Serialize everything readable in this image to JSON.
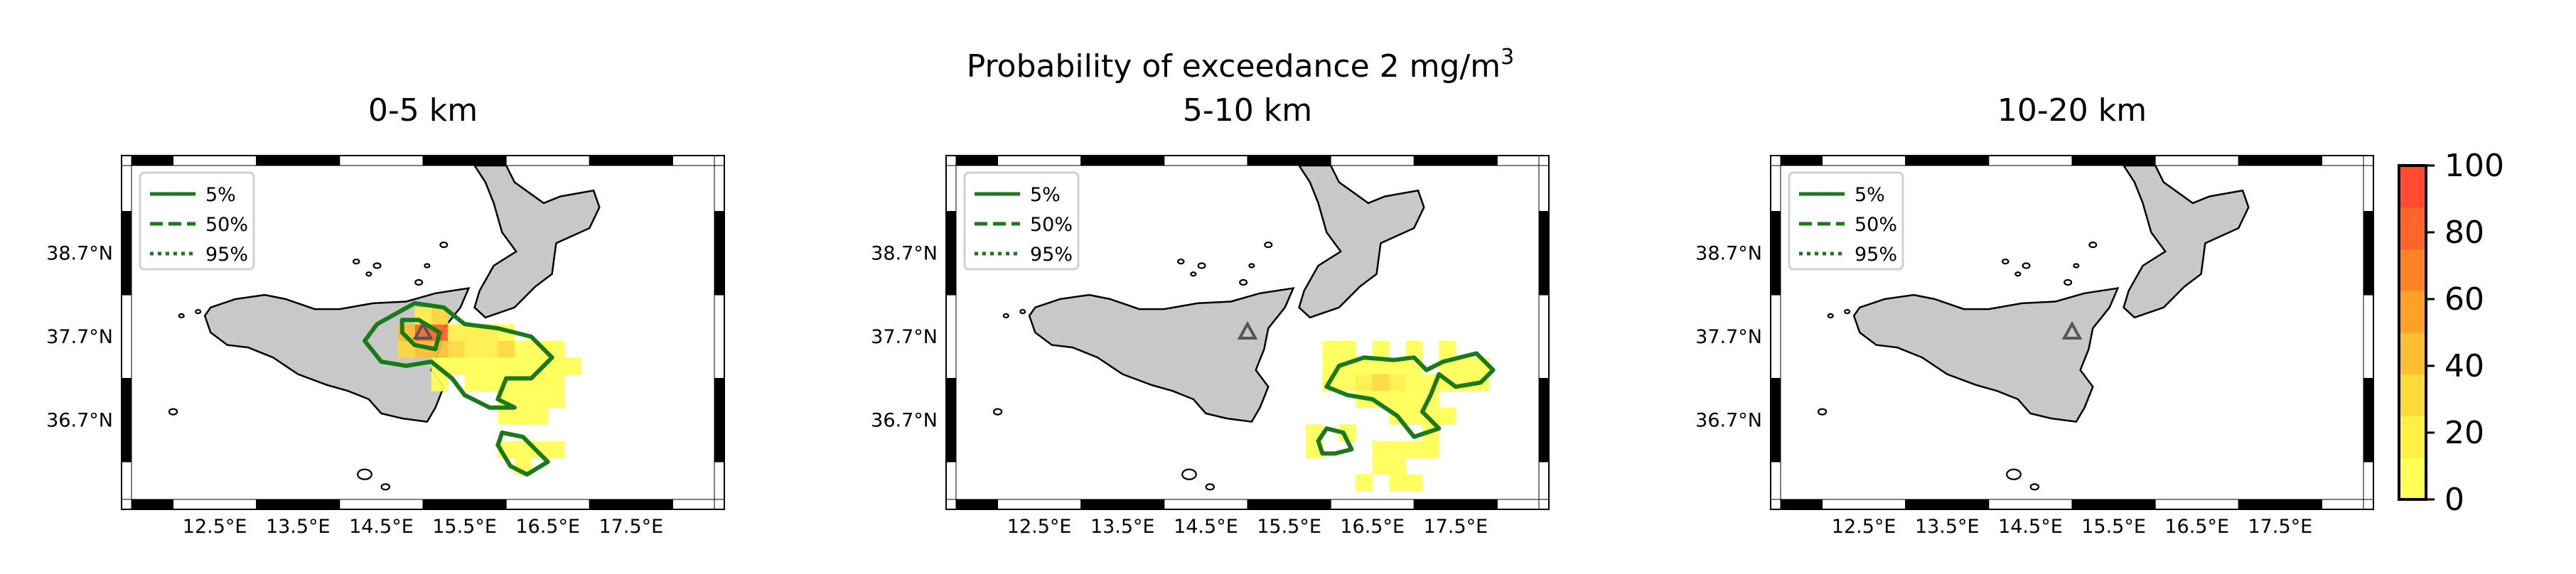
{
  "figure": {
    "suptitle": "Probability of exceedance 2 mg/m",
    "suptitle_sup": "3"
  },
  "colors": {
    "land": "#c8c8c8",
    "coast": "#000000",
    "contour": "#1a7a1a",
    "volcano": "#555555",
    "colormap": [
      "#ffff55",
      "#fff046",
      "#ffd83c",
      "#ffbe32",
      "#ffa028",
      "#ff8228",
      "#ff6428",
      "#ff4a32"
    ]
  },
  "colorbar": {
    "ticks": [
      "0",
      "20",
      "40",
      "60",
      "80",
      "100"
    ],
    "min": 0,
    "max": 100
  },
  "chart_data": [
    {
      "type": "heatmap",
      "title": "0-5 km",
      "x_ticks": [
        "12.5°E",
        "13.5°E",
        "14.5°E",
        "15.5°E",
        "16.5°E",
        "17.5°E"
      ],
      "y_ticks": [
        "38.7°N",
        "37.7°N",
        "36.7°N"
      ],
      "xlim": [
        11.5,
        18.5
      ],
      "ylim": [
        35.75,
        39.75
      ],
      "grid": false,
      "legend": {
        "placement": "top-left",
        "entries": [
          "5%",
          "50%",
          "95%"
        ]
      },
      "volcano": [
        15.0,
        37.75
      ],
      "cells": [
        [
          15.0,
          37.75,
          85
        ],
        [
          15.2,
          37.75,
          80
        ],
        [
          14.8,
          37.75,
          40
        ],
        [
          15.0,
          37.55,
          45
        ],
        [
          14.8,
          37.55,
          30
        ],
        [
          15.2,
          37.55,
          40
        ],
        [
          15.2,
          37.95,
          25
        ],
        [
          15.0,
          37.95,
          20
        ],
        [
          15.4,
          37.75,
          20
        ],
        [
          15.6,
          37.75,
          20
        ],
        [
          15.8,
          37.75,
          15
        ],
        [
          16.0,
          37.75,
          10
        ],
        [
          15.4,
          37.55,
          25
        ],
        [
          15.6,
          37.55,
          20
        ],
        [
          15.8,
          37.55,
          20
        ],
        [
          16.0,
          37.55,
          30
        ],
        [
          16.2,
          37.55,
          10
        ],
        [
          16.4,
          37.55,
          5
        ],
        [
          16.6,
          37.55,
          5
        ],
        [
          15.2,
          37.35,
          10
        ],
        [
          15.4,
          37.35,
          10
        ],
        [
          15.6,
          37.35,
          10
        ],
        [
          15.8,
          37.35,
          10
        ],
        [
          16.0,
          37.35,
          10
        ],
        [
          16.2,
          37.35,
          5
        ],
        [
          16.4,
          37.35,
          5
        ],
        [
          16.6,
          37.35,
          5
        ],
        [
          16.8,
          37.35,
          5
        ],
        [
          15.2,
          37.15,
          5
        ],
        [
          15.6,
          37.15,
          5
        ],
        [
          15.8,
          37.15,
          5
        ],
        [
          16.0,
          37.15,
          5
        ],
        [
          16.2,
          37.15,
          5
        ],
        [
          16.4,
          37.15,
          5
        ],
        [
          16.6,
          37.15,
          5
        ],
        [
          16.0,
          36.95,
          5
        ],
        [
          16.2,
          36.95,
          5
        ],
        [
          16.4,
          36.95,
          5
        ],
        [
          16.6,
          36.95,
          5
        ],
        [
          16.0,
          36.75,
          5
        ],
        [
          16.2,
          36.75,
          5
        ],
        [
          16.4,
          36.75,
          5
        ],
        [
          16.0,
          36.35,
          5
        ],
        [
          16.2,
          36.35,
          5
        ],
        [
          16.4,
          36.35,
          5
        ],
        [
          16.6,
          36.35,
          5
        ],
        [
          16.2,
          36.15,
          5
        ]
      ],
      "contours": [
        {
          "level": "5%",
          "points": [
            [
              14.5,
              37.4
            ],
            [
              14.3,
              37.65
            ],
            [
              14.45,
              37.85
            ],
            [
              14.9,
              38.1
            ],
            [
              15.25,
              38.05
            ],
            [
              15.5,
              37.85
            ],
            [
              15.9,
              37.8
            ],
            [
              16.3,
              37.7
            ],
            [
              16.55,
              37.45
            ],
            [
              16.3,
              37.2
            ],
            [
              16.0,
              37.2
            ],
            [
              15.9,
              36.95
            ],
            [
              16.1,
              36.85
            ],
            [
              15.8,
              36.85
            ],
            [
              15.5,
              37.0
            ],
            [
              15.35,
              37.2
            ],
            [
              15.1,
              37.4
            ],
            [
              14.8,
              37.35
            ]
          ]
        },
        {
          "level": "5%",
          "points": [
            [
              15.95,
              36.55
            ],
            [
              16.2,
              36.5
            ],
            [
              16.5,
              36.2
            ],
            [
              16.25,
              36.05
            ],
            [
              16.05,
              36.15
            ],
            [
              15.9,
              36.4
            ]
          ]
        },
        {
          "level": "5%",
          "points": [
            [
              14.75,
              37.9
            ],
            [
              14.95,
              37.9
            ],
            [
              15.2,
              37.75
            ],
            [
              15.15,
              37.55
            ],
            [
              14.9,
              37.6
            ],
            [
              14.75,
              37.75
            ]
          ]
        }
      ]
    },
    {
      "type": "heatmap",
      "title": "5-10 km",
      "x_ticks": [
        "12.5°E",
        "13.5°E",
        "14.5°E",
        "15.5°E",
        "16.5°E",
        "17.5°E"
      ],
      "y_ticks": [
        "38.7°N",
        "37.7°N",
        "36.7°N"
      ],
      "xlim": [
        11.5,
        18.5
      ],
      "ylim": [
        35.75,
        39.75
      ],
      "grid": false,
      "legend": {
        "placement": "top-left",
        "entries": [
          "5%",
          "50%",
          "95%"
        ]
      },
      "volcano": [
        15.0,
        37.75
      ],
      "cells": [
        [
          16.0,
          37.55,
          5
        ],
        [
          16.2,
          37.55,
          5
        ],
        [
          16.6,
          37.55,
          5
        ],
        [
          17.0,
          37.55,
          5
        ],
        [
          17.4,
          37.55,
          5
        ],
        [
          16.0,
          37.35,
          5
        ],
        [
          16.2,
          37.35,
          10
        ],
        [
          16.4,
          37.35,
          10
        ],
        [
          16.6,
          37.35,
          10
        ],
        [
          16.8,
          37.35,
          10
        ],
        [
          17.0,
          37.35,
          5
        ],
        [
          17.4,
          37.35,
          5
        ],
        [
          17.6,
          37.35,
          5
        ],
        [
          17.8,
          37.35,
          5
        ],
        [
          16.0,
          37.15,
          5
        ],
        [
          16.2,
          37.15,
          10
        ],
        [
          16.4,
          37.15,
          15
        ],
        [
          16.6,
          37.15,
          25
        ],
        [
          16.8,
          37.15,
          15
        ],
        [
          17.0,
          37.15,
          5
        ],
        [
          17.2,
          37.15,
          5
        ],
        [
          17.4,
          37.15,
          5
        ],
        [
          17.6,
          37.15,
          5
        ],
        [
          17.8,
          37.15,
          5
        ],
        [
          16.4,
          36.95,
          5
        ],
        [
          16.6,
          36.95,
          10
        ],
        [
          16.8,
          36.95,
          10
        ],
        [
          17.0,
          36.95,
          5
        ],
        [
          17.2,
          36.95,
          5
        ],
        [
          16.8,
          36.75,
          5
        ],
        [
          17.0,
          36.75,
          5
        ],
        [
          17.2,
          36.75,
          5
        ],
        [
          17.4,
          36.75,
          5
        ],
        [
          15.8,
          36.55,
          5
        ],
        [
          15.8,
          36.35,
          5
        ],
        [
          16.2,
          36.55,
          5
        ],
        [
          17.2,
          36.55,
          5
        ],
        [
          16.6,
          36.35,
          5
        ],
        [
          16.8,
          36.35,
          5
        ],
        [
          17.0,
          36.35,
          5
        ],
        [
          17.2,
          36.35,
          5
        ],
        [
          16.6,
          36.15,
          5
        ],
        [
          16.8,
          36.15,
          5
        ],
        [
          16.4,
          35.95,
          5
        ],
        [
          16.8,
          35.95,
          5
        ],
        [
          17.0,
          35.95,
          5
        ]
      ],
      "contours": [
        {
          "level": "5%",
          "points": [
            [
              15.95,
              37.1
            ],
            [
              16.1,
              37.35
            ],
            [
              16.4,
              37.45
            ],
            [
              16.75,
              37.42
            ],
            [
              17.0,
              37.45
            ],
            [
              17.15,
              37.3
            ],
            [
              17.35,
              37.4
            ],
            [
              17.75,
              37.5
            ],
            [
              17.95,
              37.3
            ],
            [
              17.8,
              37.15
            ],
            [
              17.5,
              37.1
            ],
            [
              17.3,
              37.25
            ],
            [
              17.2,
              37.0
            ],
            [
              17.1,
              36.8
            ],
            [
              17.3,
              36.6
            ],
            [
              17.0,
              36.5
            ],
            [
              16.8,
              36.75
            ],
            [
              16.5,
              36.95
            ],
            [
              16.2,
              37.0
            ]
          ]
        },
        {
          "level": "5%",
          "points": [
            [
              15.85,
              36.45
            ],
            [
              15.95,
              36.6
            ],
            [
              16.15,
              36.55
            ],
            [
              16.25,
              36.35
            ],
            [
              16.05,
              36.3
            ],
            [
              15.9,
              36.3
            ]
          ]
        }
      ]
    },
    {
      "type": "heatmap",
      "title": "10-20 km",
      "x_ticks": [
        "12.5°E",
        "13.5°E",
        "14.5°E",
        "15.5°E",
        "16.5°E",
        "17.5°E"
      ],
      "y_ticks": [
        "38.7°N",
        "37.7°N",
        "36.7°N"
      ],
      "xlim": [
        11.5,
        18.5
      ],
      "ylim": [
        35.75,
        39.75
      ],
      "grid": false,
      "legend": {
        "placement": "top-left",
        "entries": [
          "5%",
          "50%",
          "95%"
        ]
      },
      "volcano": [
        15.0,
        37.75
      ],
      "cells": [],
      "contours": []
    }
  ]
}
